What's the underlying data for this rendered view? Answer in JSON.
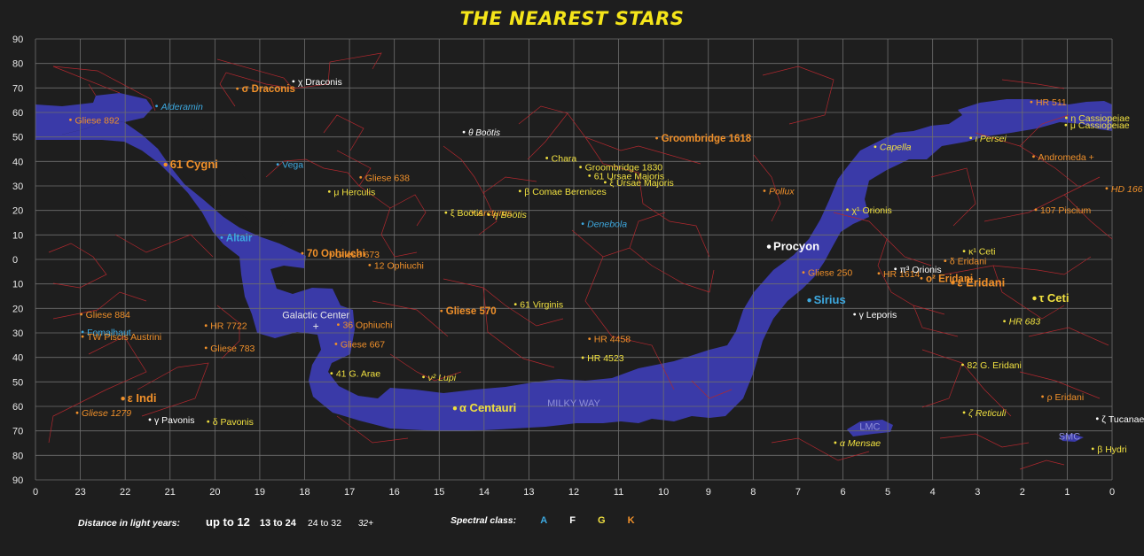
{
  "title": "THE NEAREST STARS",
  "colors": {
    "background": "#1e1e1e",
    "grid": "#6e6e6e",
    "milky_way": "#3a3aa8",
    "constellation_lines": "#b0282e",
    "title": "#f5e51a",
    "class_A": "#3da9e0",
    "class_F": "#ffffff",
    "class_G": "#f0e040",
    "class_K": "#f0902a"
  },
  "axes": {
    "x_label_ticks": [
      "0",
      "23",
      "22",
      "21",
      "20",
      "19",
      "18",
      "17",
      "16",
      "15",
      "14",
      "13",
      "12",
      "11",
      "10",
      "9",
      "8",
      "7",
      "6",
      "5",
      "4",
      "3",
      "2",
      "1",
      "0"
    ],
    "y_label_ticks": [
      "90",
      "80",
      "70",
      "60",
      "50",
      "40",
      "30",
      "20",
      "10",
      "0",
      "10",
      "20",
      "30",
      "40",
      "50",
      "60",
      "70",
      "80",
      "90"
    ]
  },
  "stars": [
    {
      "name": "Gliese 892",
      "ra": 23.22,
      "dec": 57,
      "cls": "K",
      "dist": 3,
      "italic": false
    },
    {
      "name": "Alderamin",
      "ra": 21.3,
      "dec": 62.6,
      "cls": "A",
      "dist": 3,
      "italic": true
    },
    {
      "name": "σ Draconis",
      "ra": 19.5,
      "dec": 69.7,
      "cls": "K",
      "dist": 2,
      "italic": false
    },
    {
      "name": "χ Draconis",
      "ra": 18.25,
      "dec": 72.7,
      "cls": "F",
      "dist": 3,
      "italic": false
    },
    {
      "name": "θ Boötis",
      "ra": 14.45,
      "dec": 52,
      "cls": "F",
      "dist": 4,
      "italic": true
    },
    {
      "name": "Groombridge 1618",
      "ra": 10.15,
      "dec": 49.5,
      "cls": "K",
      "dist": 2,
      "italic": false
    },
    {
      "name": "61 Cygni",
      "ra": 21.1,
      "dec": 38.7,
      "cls": "K",
      "dist": 1,
      "italic": false
    },
    {
      "name": "Vega",
      "ra": 18.6,
      "dec": 38.8,
      "cls": "A",
      "dist": 3,
      "italic": false
    },
    {
      "name": "Gliese 638",
      "ra": 16.75,
      "dec": 33.5,
      "cls": "K",
      "dist": 3,
      "italic": false
    },
    {
      "name": "μ Herculis",
      "ra": 17.45,
      "dec": 27.7,
      "cls": "G",
      "dist": 3,
      "italic": false
    },
    {
      "name": "Chara",
      "ra": 12.6,
      "dec": 41.4,
      "cls": "G",
      "dist": 3,
      "italic": false
    },
    {
      "name": "Groombridge 1830",
      "ra": 11.85,
      "dec": 37.7,
      "cls": "G",
      "dist": 3,
      "italic": false
    },
    {
      "name": "61 Ursae Majoris",
      "ra": 11.65,
      "dec": 34.2,
      "cls": "G",
      "dist": 3,
      "italic": false
    },
    {
      "name": "ξ Ursae Majoris",
      "ra": 11.3,
      "dec": 31.5,
      "cls": "G",
      "dist": 3,
      "italic": false
    },
    {
      "name": "β Comae Berenices",
      "ra": 13.2,
      "dec": 27.9,
      "cls": "G",
      "dist": 3,
      "italic": false
    },
    {
      "name": "Arcturus",
      "ra": 14.25,
      "dec": 19.2,
      "cls": "K",
      "dist": 3,
      "italic": true
    },
    {
      "name": "ξ Boötis",
      "ra": 14.85,
      "dec": 19.1,
      "cls": "G",
      "dist": 3,
      "italic": false
    },
    {
      "name": "η Boötis",
      "ra": 13.9,
      "dec": 18.4,
      "cls": "G",
      "dist": 3,
      "italic": true
    },
    {
      "name": "Deneb­ola",
      "ra": 11.8,
      "dec": 14.6,
      "cls": "A",
      "dist": 3,
      "italic": true
    },
    {
      "name": "Altair",
      "ra": 19.85,
      "dec": 8.9,
      "cls": "A",
      "dist": 2,
      "italic": false
    },
    {
      "name": "70 Ophiuchi",
      "ra": 18.05,
      "dec": 2.5,
      "cls": "K",
      "dist": 2,
      "italic": false
    },
    {
      "name": "Gliese 673",
      "ra": 17.42,
      "dec": 2.1,
      "cls": "K",
      "dist": 3,
      "italic": false
    },
    {
      "name": "12 Ophiuchi",
      "ra": 16.55,
      "dec": -2.3,
      "cls": "K",
      "dist": 3,
      "italic": false
    },
    {
      "name": "Procyon",
      "ra": 7.65,
      "dec": 5.2,
      "cls": "F",
      "dist": 1,
      "italic": false
    },
    {
      "name": "Sirius",
      "ra": 6.75,
      "dec": -16.7,
      "cls": "A",
      "dist": 1,
      "italic": false
    },
    {
      "name": "χ¹ Orionis",
      "ra": 5.9,
      "dec": 20.3,
      "cls": "G",
      "dist": 3,
      "italic": false
    },
    {
      "name": "Capella",
      "ra": 5.28,
      "dec": 46,
      "cls": "G",
      "dist": 3,
      "italic": true
    },
    {
      "name": "Pollux",
      "ra": 7.75,
      "dec": 28,
      "cls": "K",
      "dist": 3,
      "italic": true
    },
    {
      "name": "Gliese 250",
      "ra": 6.88,
      "dec": -5.3,
      "cls": "K",
      "dist": 3,
      "italic": false
    },
    {
      "name": "HR 1614",
      "ra": 5.2,
      "dec": -5.7,
      "cls": "K",
      "dist": 3,
      "italic": false
    },
    {
      "name": "o² Eridani",
      "ra": 4.25,
      "dec": -7.7,
      "cls": "K",
      "dist": 2,
      "italic": false
    },
    {
      "name": "π³ Orionis",
      "ra": 4.83,
      "dec": -3.9,
      "cls": "F",
      "dist": 3,
      "italic": false
    },
    {
      "name": "ε Eridani",
      "ra": 3.55,
      "dec": -9.5,
      "cls": "K",
      "dist": 1,
      "italic": false
    },
    {
      "name": "τ Ceti",
      "ra": 1.73,
      "dec": -15.9,
      "cls": "G",
      "dist": 1,
      "italic": false
    },
    {
      "name": "κ¹ Ceti",
      "ra": 3.3,
      "dec": 3.4,
      "cls": "G",
      "dist": 3,
      "italic": false
    },
    {
      "name": "δ Eridani",
      "ra": 3.72,
      "dec": -0.6,
      "cls": "K",
      "dist": 3,
      "italic": false
    },
    {
      "name": "γ Leporis",
      "ra": 5.74,
      "dec": -22.4,
      "cls": "F",
      "dist": 3,
      "italic": false
    },
    {
      "name": "HR 683",
      "ra": 2.4,
      "dec": -25.2,
      "cls": "G",
      "dist": 3,
      "italic": true
    },
    {
      "name": "82 G. Eridani",
      "ra": 3.33,
      "dec": -43,
      "cls": "G",
      "dist": 3,
      "italic": false
    },
    {
      "name": "ι Persei",
      "ra": 3.15,
      "dec": 49.6,
      "cls": "G",
      "dist": 3,
      "italic": true
    },
    {
      "name": "ρ Eridani",
      "ra": 1.55,
      "dec": -56,
      "cls": "K",
      "dist": 3,
      "italic": false
    },
    {
      "name": "ζ Reticuli",
      "ra": 3.3,
      "dec": -62.5,
      "cls": "G",
      "dist": 3,
      "italic": true
    },
    {
      "name": "ζ Tucanae",
      "ra": 0.33,
      "dec": -65,
      "cls": "F",
      "dist": 3,
      "italic": false
    },
    {
      "name": "β Hydri",
      "ra": 0.43,
      "dec": -77.3,
      "cls": "G",
      "dist": 3,
      "italic": false
    },
    {
      "name": "α Mensae",
      "ra": 6.17,
      "dec": -74.8,
      "cls": "G",
      "dist": 3,
      "italic": true
    },
    {
      "name": "HR 511",
      "ra": 1.8,
      "dec": 64.3,
      "cls": "K",
      "dist": 3,
      "italic": false
    },
    {
      "name": "η Cassiopeiae",
      "ra": 1.02,
      "dec": 57.8,
      "cls": "G",
      "dist": 3,
      "italic": false
    },
    {
      "name": "μ Cassiopeiae",
      "ra": 1.03,
      "dec": 54.9,
      "cls": "G",
      "dist": 3,
      "italic": false
    },
    {
      "name": "Andromeda +",
      "ra": 1.75,
      "dec": 42,
      "cls": "K",
      "dist": 3,
      "italic": false
    },
    {
      "name": "HD 166",
      "ra": 0.12,
      "dec": 29,
      "cls": "K",
      "dist": 3,
      "italic": true
    },
    {
      "name": "107 Piscium",
      "ra": 1.7,
      "dec": 20.3,
      "cls": "K",
      "dist": 3,
      "italic": false
    },
    {
      "name": "Gliese 884",
      "ra": 22.98,
      "dec": -22.4,
      "cls": "K",
      "dist": 3,
      "italic": false
    },
    {
      "name": "Fomalhaut",
      "ra": 22.95,
      "dec": -29.6,
      "cls": "A",
      "dist": 3,
      "italic": false
    },
    {
      "name": "TW Piscis Austrini",
      "ra": 22.95,
      "dec": -31.5,
      "cls": "K",
      "dist": 3,
      "italic": false
    },
    {
      "name": "HR 7722",
      "ra": 20.2,
      "dec": -27,
      "cls": "K",
      "dist": 3,
      "italic": false
    },
    {
      "name": "Gliese 783",
      "ra": 20.2,
      "dec": -36.1,
      "cls": "K",
      "dist": 3,
      "italic": false
    },
    {
      "name": "36 Ophiuchi",
      "ra": 17.25,
      "dec": -26.6,
      "cls": "K",
      "dist": 3,
      "italic": false
    },
    {
      "name": "Gliese 667",
      "ra": 17.3,
      "dec": -34.5,
      "cls": "K",
      "dist": 3,
      "italic": false
    },
    {
      "name": "41 G. Arae",
      "ra": 17.4,
      "dec": -46.5,
      "cls": "G",
      "dist": 3,
      "italic": false
    },
    {
      "name": "ν² Lupi",
      "ra": 15.35,
      "dec": -48,
      "cls": "G",
      "dist": 3,
      "italic": true
    },
    {
      "name": "Gliese 570",
      "ra": 14.95,
      "dec": -21,
      "cls": "K",
      "dist": 2,
      "italic": false
    },
    {
      "name": "61 Virginis",
      "ra": 13.3,
      "dec": -18.3,
      "cls": "G",
      "dist": 3,
      "italic": false
    },
    {
      "name": "HR 4458",
      "ra": 11.65,
      "dec": -32.4,
      "cls": "K",
      "dist": 3,
      "italic": false
    },
    {
      "name": "HR 4523",
      "ra": 11.8,
      "dec": -40.1,
      "cls": "G",
      "dist": 3,
      "italic": false
    },
    {
      "name": "α Centauri",
      "ra": 14.65,
      "dec": -60.8,
      "cls": "G",
      "dist": 1,
      "italic": false
    },
    {
      "name": "ε Indi",
      "ra": 22.05,
      "dec": -56.8,
      "cls": "K",
      "dist": 1,
      "italic": false
    },
    {
      "name": "γ Pavonis",
      "ra": 21.45,
      "dec": -65.4,
      "cls": "F",
      "dist": 3,
      "italic": false
    },
    {
      "name": "δ Pavonis",
      "ra": 20.15,
      "dec": -66.2,
      "cls": "G",
      "dist": 3,
      "italic": false
    },
    {
      "name": "Gliese 1279",
      "ra": 23.07,
      "dec": -62.6,
      "cls": "K",
      "dist": 3,
      "italic": true
    }
  ],
  "region_labels": [
    {
      "text": "Galactic Center",
      "ra": 17.75,
      "dec": -24,
      "color": "#e8e8e8"
    },
    {
      "text": "MILKY WAY",
      "ra": 12.0,
      "dec": -60,
      "color": "#9090d8"
    },
    {
      "text": "LMC",
      "ra": 5.4,
      "dec": -69.5,
      "color": "#9090d8"
    },
    {
      "text": "SMC",
      "ra": 0.95,
      "dec": -73.5,
      "color": "#9090d8"
    }
  ],
  "legend": {
    "distance_title": "Distance in light years:",
    "distance_classes": [
      "up to 12",
      "13 to 24",
      "24 to 32",
      "32+"
    ],
    "spectral_title": "Spectral class:",
    "spectral_classes": [
      {
        "label": "A",
        "color": "#3da9e0"
      },
      {
        "label": "F",
        "color": "#ffffff"
      },
      {
        "label": "G",
        "color": "#f0e040"
      },
      {
        "label": "K",
        "color": "#f0902a"
      }
    ]
  }
}
